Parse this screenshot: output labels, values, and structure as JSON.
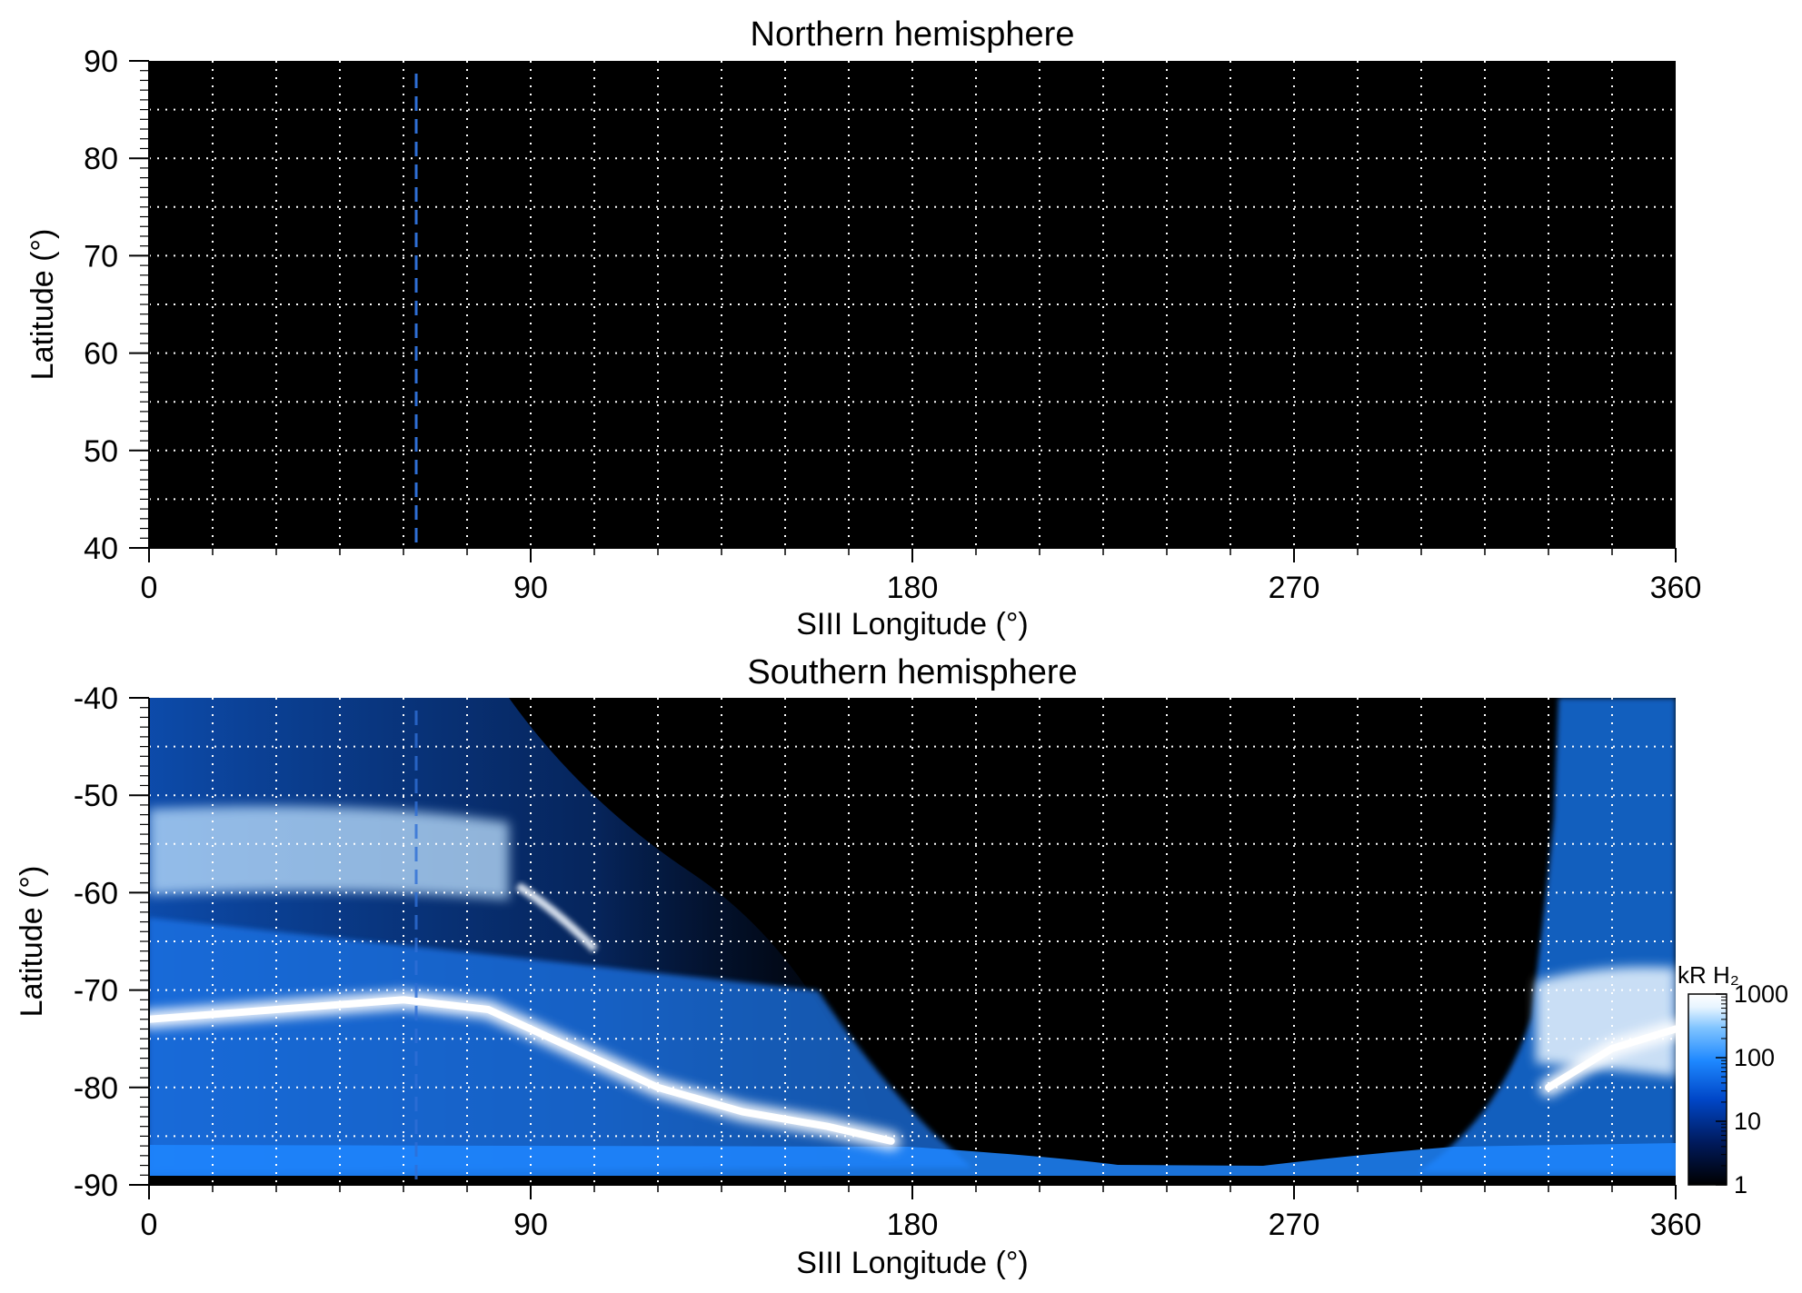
{
  "figure": {
    "colors": {
      "background": "#ffffff",
      "plot_background": "#000000",
      "grid": "#ffffff",
      "marker_line": "#2f6fd6",
      "colormap": [
        "#000000",
        "#001a5c",
        "#0047c8",
        "#1e88ff",
        "#7ec3ff",
        "#e6f4ff",
        "#ffffff"
      ]
    }
  },
  "chart_data": [
    {
      "type": "heatmap",
      "title": "Northern hemisphere",
      "xlabel": "SIII Longitude (°)",
      "ylabel": "Latitude (°)",
      "xlim": [
        0,
        360
      ],
      "ylim": [
        40,
        90
      ],
      "xticks": [
        0,
        90,
        180,
        270,
        360
      ],
      "yticks": [
        40,
        50,
        60,
        70,
        80,
        90
      ],
      "grid": true,
      "grid_x_step": 15,
      "grid_y_step": 5,
      "grid_style": "dotted",
      "marker_longitude": 63,
      "emission": "none"
    },
    {
      "type": "heatmap",
      "title": "Southern hemisphere",
      "xlabel": "SIII Longitude (°)",
      "ylabel": "Latitude (°)",
      "xlim": [
        0,
        360
      ],
      "ylim": [
        -90,
        -40
      ],
      "xticks": [
        0,
        90,
        180,
        270,
        360
      ],
      "yticks": [
        -40,
        -50,
        -60,
        -70,
        -80,
        -90
      ],
      "grid": true,
      "grid_x_step": 15,
      "grid_y_step": 5,
      "grid_style": "dotted",
      "marker_longitude": 63,
      "main_oval": [
        {
          "lon": 0,
          "lat": -73
        },
        {
          "lon": 30,
          "lat": -72
        },
        {
          "lon": 60,
          "lat": -71
        },
        {
          "lon": 80,
          "lat": -72
        },
        {
          "lon": 100,
          "lat": -76
        },
        {
          "lon": 120,
          "lat": -80
        },
        {
          "lon": 140,
          "lat": -82.5
        },
        {
          "lon": 160,
          "lat": -84
        },
        {
          "lon": 175,
          "lat": -85.5
        },
        {
          "lon": 330,
          "lat": -80
        },
        {
          "lon": 345,
          "lat": -76
        },
        {
          "lon": 360,
          "lat": -74
        }
      ],
      "colorbar": {
        "label": "kR H₂",
        "scale": "log",
        "range": [
          1,
          1000
        ],
        "ticks": [
          "1",
          "10",
          "100",
          "1000"
        ]
      }
    }
  ]
}
